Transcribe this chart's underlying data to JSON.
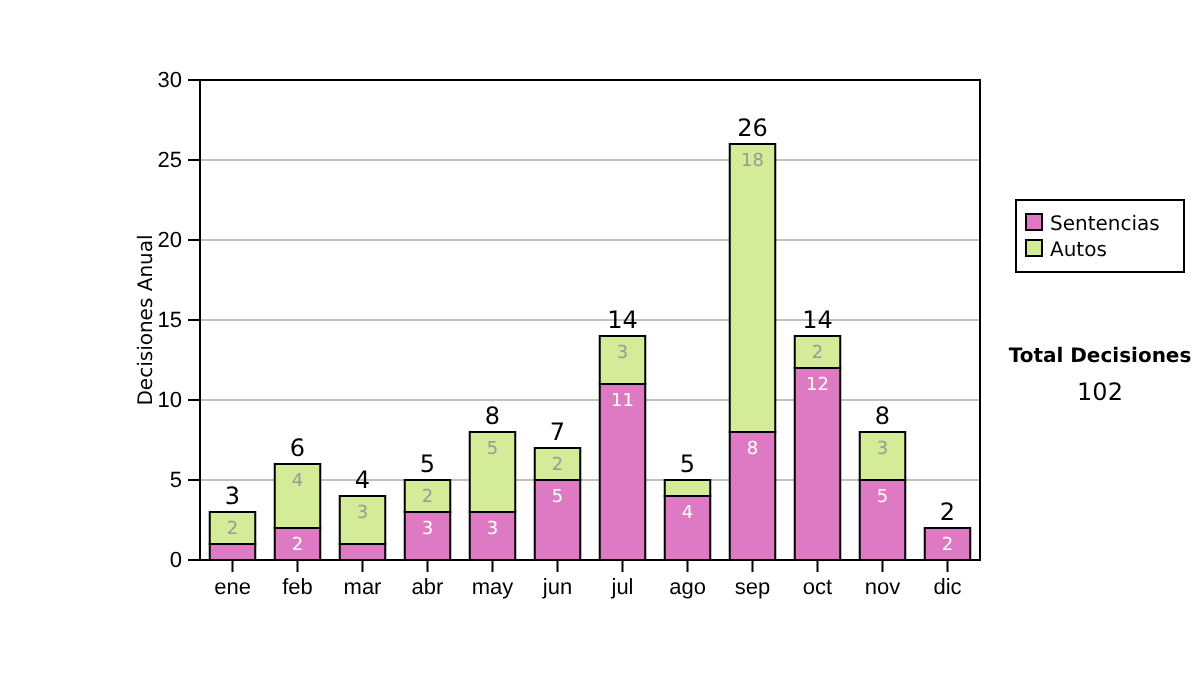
{
  "chart_data": {
    "type": "bar",
    "stacked": true,
    "ylabel": "Decisiones Anual",
    "categories": [
      "ene",
      "feb",
      "mar",
      "abr",
      "may",
      "jun",
      "jul",
      "ago",
      "sep",
      "oct",
      "nov",
      "dic"
    ],
    "series": [
      {
        "name": "Sentencias",
        "color": "#dd7ac3",
        "values": [
          1,
          2,
          1,
          3,
          3,
          5,
          11,
          4,
          8,
          12,
          5,
          2
        ],
        "value_labels": [
          null,
          "2",
          null,
          "3",
          "3",
          "5",
          "11",
          "4",
          "8",
          "12",
          "5",
          "2"
        ]
      },
      {
        "name": "Autos",
        "color": "#d4ec98",
        "values": [
          2,
          4,
          3,
          2,
          5,
          2,
          3,
          1,
          18,
          2,
          3,
          0
        ],
        "value_labels": [
          "2",
          "4",
          "3",
          "2",
          "5",
          "2",
          "3",
          null,
          "18",
          "2",
          "3",
          null
        ]
      }
    ],
    "totals": [
      "3",
      "6",
      "4",
      "5",
      "8",
      "7",
      "14",
      "5",
      "26",
      "14",
      "8",
      "2"
    ],
    "ylim": [
      0,
      30
    ],
    "yticks": [
      0,
      5,
      10,
      15,
      20,
      25,
      30
    ],
    "grid": "y",
    "legend": "right",
    "annotations": [
      "Total Decisiones",
      "102"
    ]
  }
}
